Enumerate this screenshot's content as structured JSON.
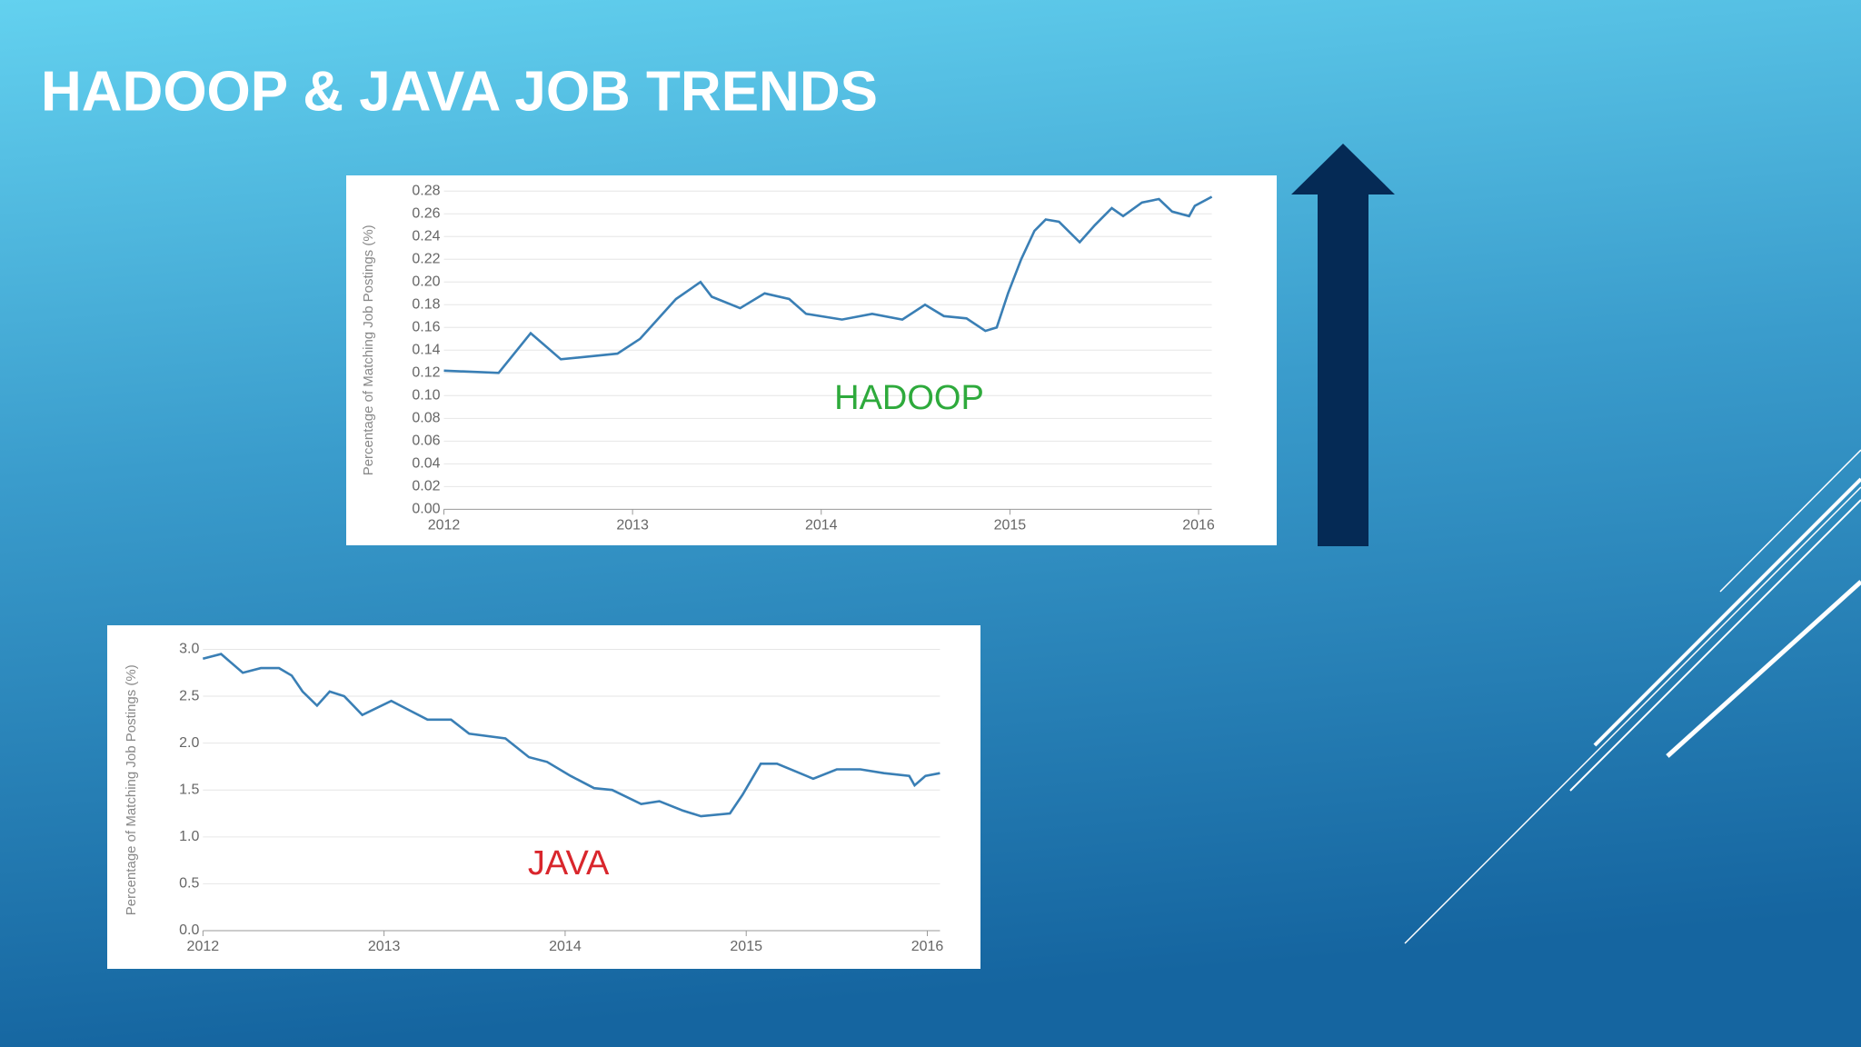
{
  "slide": {
    "title": "HADOOP & JAVA JOB TRENDS"
  },
  "chart_data": [
    {
      "type": "line",
      "y_label": "Percentage of Matching Job Postings (%)",
      "annotation": "HADOOP",
      "annotation_color": "#2eaa3c",
      "color": "#3a7fb5",
      "grid": true,
      "x": [
        2012,
        2012.29,
        2012.46,
        2012.62,
        2012.92,
        2013.04,
        2013.23,
        2013.36,
        2013.42,
        2013.57,
        2013.7,
        2013.83,
        2013.92,
        2014.11,
        2014.27,
        2014.43,
        2014.55,
        2014.65,
        2014.77,
        2014.87,
        2014.93,
        2014.99,
        2015.06,
        2015.13,
        2015.19,
        2015.26,
        2015.37,
        2015.45,
        2015.54,
        2015.6,
        2015.7,
        2015.79,
        2015.86,
        2015.95,
        2015.98,
        2016.07
      ],
      "values": [
        0.122,
        0.12,
        0.155,
        0.132,
        0.137,
        0.15,
        0.185,
        0.2,
        0.187,
        0.177,
        0.19,
        0.185,
        0.172,
        0.167,
        0.172,
        0.167,
        0.18,
        0.17,
        0.168,
        0.157,
        0.16,
        0.19,
        0.22,
        0.245,
        0.255,
        0.253,
        0.235,
        0.25,
        0.265,
        0.258,
        0.27,
        0.273,
        0.262,
        0.258,
        0.267,
        0.275
      ],
      "xlim": [
        2012,
        2016.07
      ],
      "xticks": [
        2012,
        2013,
        2014,
        2015,
        2016
      ],
      "ylim": [
        0,
        0.28
      ],
      "yticks": [
        {
          "value": 0,
          "label": "0.00"
        },
        0.02,
        0.04,
        0.06,
        0.08,
        {
          "value": 0.1,
          "label": "0.10"
        },
        0.12,
        0.14,
        0.16,
        0.18,
        {
          "value": 0.2,
          "label": "0.20"
        },
        0.22,
        0.24,
        0.26,
        0.28
      ]
    },
    {
      "type": "line",
      "y_label": "Percentage of Matching Job Postings (%)",
      "annotation": "JAVA",
      "annotation_color": "#d9262c",
      "color": "#3a7fb5",
      "grid": true,
      "x": [
        2012,
        2012.1,
        2012.22,
        2012.32,
        2012.42,
        2012.49,
        2012.55,
        2012.63,
        2012.7,
        2012.78,
        2012.88,
        2013.04,
        2013.14,
        2013.24,
        2013.37,
        2013.47,
        2013.67,
        2013.8,
        2013.9,
        2014.03,
        2014.16,
        2014.26,
        2014.42,
        2014.52,
        2014.65,
        2014.75,
        2014.91,
        2014.98,
        2015.08,
        2015.17,
        2015.37,
        2015.5,
        2015.63,
        2015.76,
        2015.9,
        2015.93,
        2015.99,
        2016.07
      ],
      "values": [
        2.9,
        2.95,
        2.75,
        2.8,
        2.8,
        2.72,
        2.55,
        2.4,
        2.55,
        2.5,
        2.3,
        2.45,
        2.35,
        2.25,
        2.25,
        2.1,
        2.05,
        1.85,
        1.8,
        1.65,
        1.52,
        1.5,
        1.35,
        1.38,
        1.28,
        1.22,
        1.25,
        1.45,
        1.78,
        1.78,
        1.62,
        1.72,
        1.72,
        1.68,
        1.65,
        1.55,
        1.65,
        1.68
      ],
      "xlim": [
        2012,
        2016.07
      ],
      "xticks": [
        2012,
        2013,
        2014,
        2015,
        2016
      ],
      "ylim": [
        0,
        3
      ],
      "yticks": [
        {
          "value": 0,
          "label": "0.0"
        },
        0.5,
        {
          "value": 1,
          "label": "1.0"
        },
        1.5,
        {
          "value": 2,
          "label": "2.0"
        },
        2.5,
        {
          "value": 3,
          "label": "3.0"
        }
      ]
    }
  ]
}
